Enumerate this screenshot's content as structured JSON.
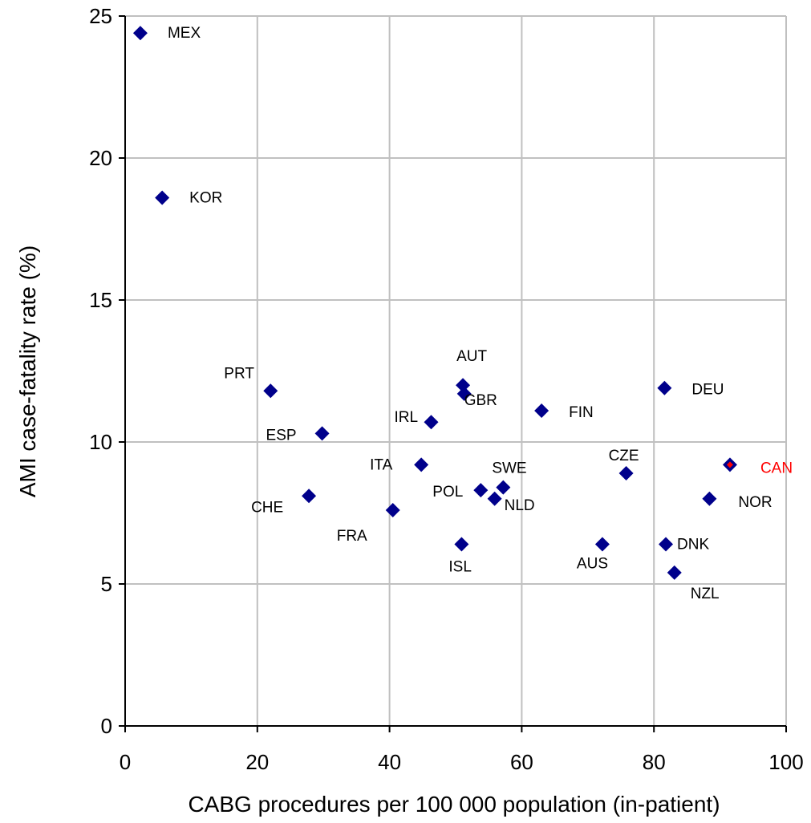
{
  "chart_data": {
    "type": "scatter",
    "xlabel": "CABG procedures per 100 000 population (in-patient)",
    "ylabel": "AMI case-fatality rate (%)",
    "xlim": [
      0,
      100
    ],
    "ylim": [
      0,
      25
    ],
    "xticks": [
      0,
      20,
      40,
      60,
      80,
      100
    ],
    "yticks": [
      0,
      5,
      10,
      15,
      20,
      25
    ],
    "grid": true,
    "colors": {
      "marker": "#00008b",
      "highlight": "#ff0000",
      "grid": "#c0c0c0"
    },
    "points": [
      {
        "label": "MEX",
        "x": 2.3,
        "y": 24.4
      },
      {
        "label": "KOR",
        "x": 5.6,
        "y": 18.6
      },
      {
        "label": "PRT",
        "x": 22.0,
        "y": 11.8
      },
      {
        "label": "ESP",
        "x": 29.8,
        "y": 10.3
      },
      {
        "label": "CHE",
        "x": 27.8,
        "y": 8.1
      },
      {
        "label": "FRA",
        "x": 40.5,
        "y": 7.6
      },
      {
        "label": "ITA",
        "x": 44.8,
        "y": 9.2
      },
      {
        "label": "IRL",
        "x": 46.3,
        "y": 10.7
      },
      {
        "label": "AUT",
        "x": 51.1,
        "y": 12.0
      },
      {
        "label": "GBR",
        "x": 51.3,
        "y": 11.7
      },
      {
        "label": "ISL",
        "x": 50.9,
        "y": 6.4
      },
      {
        "label": "POL",
        "x": 53.8,
        "y": 8.3
      },
      {
        "label": "NLD",
        "x": 55.9,
        "y": 8.0
      },
      {
        "label": "SWE",
        "x": 57.2,
        "y": 8.4
      },
      {
        "label": "FIN",
        "x": 63.0,
        "y": 11.1
      },
      {
        "label": "AUS",
        "x": 72.2,
        "y": 6.4
      },
      {
        "label": "CZE",
        "x": 75.8,
        "y": 8.9
      },
      {
        "label": "DEU",
        "x": 81.6,
        "y": 11.9
      },
      {
        "label": "DNK",
        "x": 81.8,
        "y": 6.4
      },
      {
        "label": "NZL",
        "x": 83.1,
        "y": 5.4
      },
      {
        "label": "NOR",
        "x": 88.4,
        "y": 8.0
      },
      {
        "label": "CAN",
        "x": 91.5,
        "y": 9.2,
        "highlight": true
      }
    ]
  }
}
